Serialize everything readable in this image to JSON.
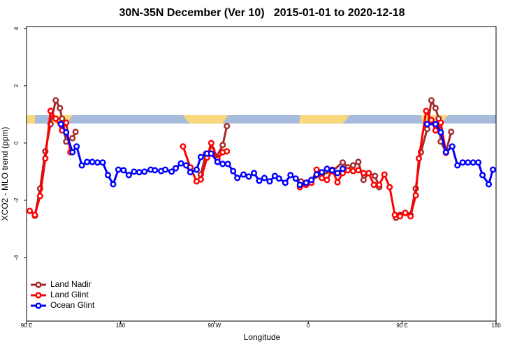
{
  "chart_data": {
    "type": "line",
    "title": "30N-35N December (Ver 10)   2015-01-01 to 2020-12-18",
    "xlabel": "Longitude",
    "ylabel": "XCO2 - MLO trend (ppm)",
    "xlim": [
      90,
      540
    ],
    "ylim": [
      -6.22,
      4.07
    ],
    "xticks": [
      {
        "value": 90,
        "label": "90 E"
      },
      180,
      {
        "value": 270,
        "label": "90 W"
      },
      {
        "value": 360,
        "label": "0"
      },
      {
        "value": 450,
        "label": "90 E"
      },
      {
        "value": 540,
        "label": "180"
      }
    ],
    "yticks": [
      -4,
      -2,
      0,
      2,
      4
    ],
    "legend": "bottom-left",
    "series": [
      {
        "name": "Land Nadir",
        "color": "#a52a2a",
        "x": [
          98,
          103,
          108,
          113,
          118,
          122,
          124,
          128,
          134,
          137,
          null,
          257,
          262,
          268,
          272,
          278,
          282,
          null,
          353,
          363,
          373,
          383,
          393,
          398,
          403,
          408,
          413,
          418,
          424,
          428,
          null,
          444,
          448,
          453,
          458,
          463,
          468,
          474,
          478,
          482,
          485,
          487,
          492,
          497
        ],
        "values": [
          -2.54,
          -1.59,
          -0.29,
          0.66,
          1.49,
          1.22,
          0.85,
          0.05,
          0.17,
          0.39,
          null,
          -1.1,
          -0.37,
          -0.24,
          -0.49,
          -0.07,
          0.59,
          null,
          -1.34,
          -1.29,
          -1.1,
          -0.98,
          -0.68,
          -0.85,
          -0.78,
          -0.66,
          -1.29,
          -1.05,
          -1.15,
          -1.54,
          null,
          -2.61,
          -2.51,
          -2.44,
          -2.51,
          -1.59,
          -0.32,
          0.49,
          1.49,
          1.22,
          0.85,
          0.05,
          -0.32,
          0.39
        ]
      },
      {
        "name": "Land Glint",
        "color": "#ff0000",
        "x": [
          93,
          98,
          103,
          108,
          113,
          118,
          124,
          128,
          132,
          null,
          240,
          247,
          253,
          257,
          263,
          267,
          273,
          278,
          282,
          null,
          352,
          358,
          363,
          368,
          373,
          378,
          383,
          388,
          393,
          398,
          403,
          408,
          413,
          418,
          423,
          428,
          433,
          438,
          443,
          448,
          453,
          458,
          463,
          466,
          473,
          478,
          482,
          487,
          492
        ],
        "values": [
          -2.37,
          -2.51,
          -1.85,
          -0.54,
          1.12,
          0.85,
          0.44,
          0.71,
          -0.32,
          null,
          -0.12,
          -0.85,
          -1.34,
          -1.27,
          -0.51,
          0.0,
          -0.56,
          -0.32,
          -0.29,
          null,
          -1.54,
          -1.46,
          -1.39,
          -0.93,
          -1.22,
          -1.29,
          -0.93,
          -1.37,
          -1.05,
          -0.95,
          -0.98,
          -0.95,
          -1.05,
          -1.05,
          -1.46,
          -1.46,
          -1.1,
          -1.54,
          -2.51,
          -2.56,
          -2.44,
          -2.56,
          -1.83,
          -0.54,
          1.12,
          0.8,
          0.44,
          0.71,
          -0.34
        ]
      },
      {
        "name": "Ocean Glint",
        "color": "#0000ff",
        "x": [
          123,
          128,
          134,
          138,
          143,
          148,
          153,
          158,
          163,
          168,
          173,
          178,
          183,
          188,
          193,
          198,
          203,
          209,
          213,
          219,
          223,
          229,
          233,
          238,
          243,
          247,
          253,
          257,
          263,
          267,
          273,
          278,
          283,
          288,
          292,
          298,
          303,
          308,
          313,
          318,
          323,
          328,
          332,
          338,
          343,
          348,
          352,
          358,
          363,
          368,
          373,
          378,
          383,
          388,
          393,
          null,
          474,
          482,
          487,
          492,
          498,
          503,
          508,
          513,
          518,
          523,
          527,
          533,
          537
        ],
        "values": [
          0.66,
          0.37,
          -0.32,
          -0.12,
          -0.78,
          -0.66,
          -0.66,
          -0.68,
          -0.68,
          -1.12,
          -1.44,
          -0.93,
          -0.95,
          -1.12,
          -1.0,
          -1.02,
          -1.0,
          -0.93,
          -0.95,
          -0.98,
          -0.93,
          -1.0,
          -0.88,
          -0.71,
          -0.78,
          -1.02,
          -0.93,
          -0.49,
          -0.37,
          -0.37,
          -0.66,
          -0.73,
          -0.73,
          -0.98,
          -1.22,
          -1.1,
          -1.17,
          -1.05,
          -1.32,
          -1.22,
          -1.34,
          -1.15,
          -1.24,
          -1.39,
          -1.12,
          -1.24,
          -1.46,
          -1.39,
          -1.29,
          -1.1,
          -1.02,
          -0.9,
          -0.95,
          -1.05,
          -0.9,
          null,
          0.66,
          0.66,
          0.37,
          -0.32,
          -0.12,
          -0.78,
          -0.68,
          -0.68,
          -0.68,
          -0.68,
          -1.12,
          -1.44,
          -0.93
        ]
      }
    ]
  }
}
